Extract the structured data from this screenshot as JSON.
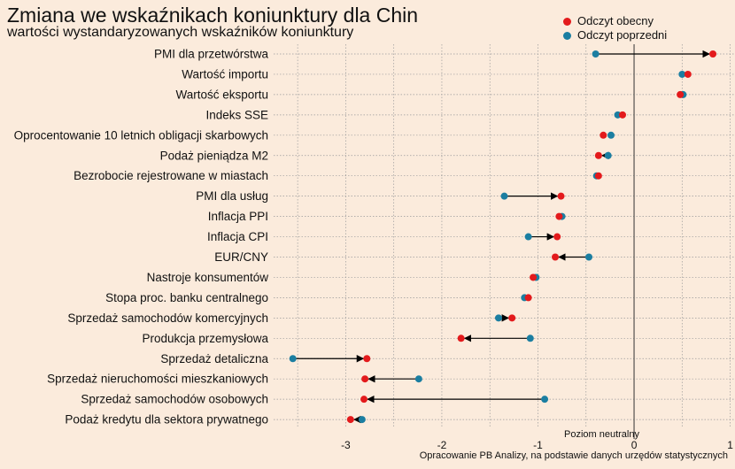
{
  "chart_data": {
    "type": "dumbbell",
    "title": "Zmiana we wskaźnikach koniunktury dla Chin",
    "subtitle": "wartości wystandaryzowanych wskaźników koniunktury",
    "legend": [
      {
        "name": "Odczyt obecny",
        "color": "#e31a1c"
      },
      {
        "name": "Odczyt poprzedni",
        "color": "#1b7ea1"
      }
    ],
    "legend_position": "top-right",
    "categories": [
      "PMI dla przetwórstwa",
      "Wartość importu",
      "Wartość eksportu",
      "Indeks SSE",
      "Oprocentowanie 10 letnich obligacji skarbowych",
      "Podaż pieniądza M2",
      "Bezrobocie rejestrowane w miastach",
      "PMI dla usług",
      "Inflacja PPI",
      "Inflacja CPI",
      "EUR/CNY",
      "Nastroje konsumentów",
      "Stopa proc. banku centralnego",
      "Sprzedaż samochodów komercyjnych",
      "Produkcja przemysłowa",
      "Sprzedaż detaliczna",
      "Sprzedaż nieruchomości mieszkaniowych",
      "Sprzedaż samochodów osobowych",
      "Podaż kredytu dla sektora prywatnego"
    ],
    "series": [
      {
        "name": "Odczyt obecny",
        "values": [
          0.82,
          0.56,
          0.48,
          -0.12,
          -0.32,
          -0.37,
          -0.37,
          -0.76,
          -0.78,
          -0.8,
          -0.82,
          -1.05,
          -1.1,
          -1.27,
          -1.8,
          -2.78,
          -2.8,
          -2.81,
          -2.95
        ]
      },
      {
        "name": "Odczyt poprzedni",
        "values": [
          -0.4,
          0.5,
          0.51,
          -0.17,
          -0.24,
          -0.27,
          -0.39,
          -1.35,
          -0.75,
          -1.1,
          -0.47,
          -1.02,
          -1.14,
          -1.41,
          -1.08,
          -3.55,
          -2.24,
          -0.93,
          -2.83
        ]
      }
    ],
    "xlim": [
      -3.75,
      1.05
    ],
    "xticks": [
      -3,
      -2,
      -1,
      0,
      1
    ],
    "xtick_labels": [
      "-3",
      "-2",
      "-1",
      "0",
      "1"
    ],
    "grid": true,
    "neutral_line_label": "Poziom neutralny",
    "source": "Opracowanie  PB Analizy, na podstawie danych urzędów statystycznych"
  }
}
